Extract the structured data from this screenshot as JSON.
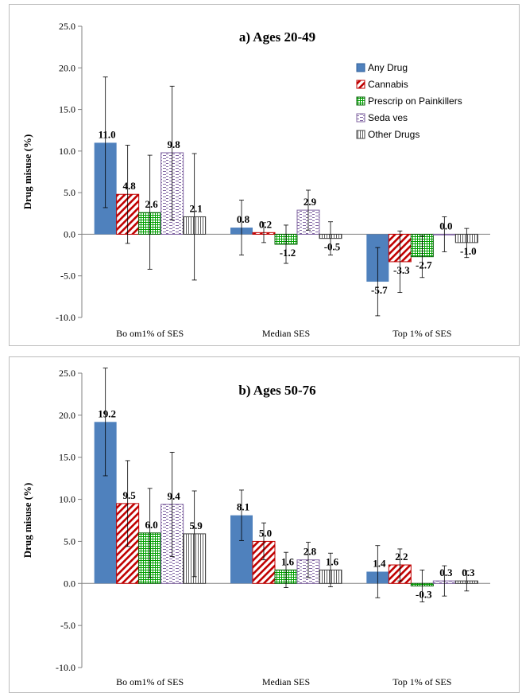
{
  "chart_data": [
    {
      "type": "bar",
      "title": "a) Ages 20-49",
      "ylabel": "Drug misuse (%)",
      "xlabel": "",
      "ylim": [
        -10,
        25
      ],
      "yticks": [
        "-10.0",
        "-5.0",
        "0.0",
        "5.0",
        "10.0",
        "15.0",
        "20.0",
        "25.0"
      ],
      "categories": [
        "Bo    om1% of SES",
        "Median SES",
        "Top 1% of SES"
      ],
      "legend_position": "top-right",
      "series": [
        {
          "name": "Any Drug",
          "values": [
            11.0,
            0.8,
            -5.7
          ],
          "labels": [
            "11.0",
            "0.8",
            "-5.7"
          ],
          "err_low": [
            3.2,
            -2.5,
            -9.8
          ],
          "err_high": [
            18.9,
            4.1,
            -1.6
          ]
        },
        {
          "name": "Cannabis",
          "values": [
            4.8,
            0.2,
            -3.3
          ],
          "labels": [
            "4.8",
            "0.2",
            "-3.3"
          ],
          "err_low": [
            -1.1,
            -1.0,
            -7.0
          ],
          "err_high": [
            10.7,
            1.4,
            0.4
          ]
        },
        {
          "name": "Prescrip  on Painkillers",
          "values": [
            2.6,
            -1.2,
            -2.7
          ],
          "labels": [
            "2.6",
            "-1.2",
            "-2.7"
          ],
          "err_low": [
            -4.2,
            -3.5,
            -5.2
          ],
          "err_high": [
            9.5,
            1.1,
            -0.2
          ]
        },
        {
          "name": "Seda  ves",
          "values": [
            9.8,
            2.9,
            0.0
          ],
          "labels": [
            "9.8",
            "2.9",
            "0.0"
          ],
          "err_low": [
            1.7,
            0.5,
            -2.1
          ],
          "err_high": [
            17.8,
            5.3,
            2.1
          ]
        },
        {
          "name": "Other Drugs",
          "values": [
            2.1,
            -0.5,
            -1.0
          ],
          "labels": [
            "2.1",
            "-0.5",
            "-1.0"
          ],
          "err_low": [
            -5.5,
            -2.5,
            -2.8
          ],
          "err_high": [
            9.7,
            1.5,
            0.7
          ]
        }
      ]
    },
    {
      "type": "bar",
      "title": "b) Ages 50-76",
      "ylabel": "Drug misuse (%)",
      "xlabel": "",
      "ylim": [
        -10,
        25
      ],
      "yticks": [
        "-10.0",
        "-5.0",
        "0.0",
        "5.0",
        "10.0",
        "15.0",
        "20.0",
        "25.0"
      ],
      "categories": [
        "Bo    om1% of SES",
        "Median SES",
        "Top 1% of SES"
      ],
      "series": [
        {
          "name": "Any Drug",
          "values": [
            19.2,
            8.1,
            1.4
          ],
          "labels": [
            "19.2",
            "8.1",
            "1.4"
          ],
          "err_low": [
            12.8,
            5.1,
            -1.7
          ],
          "err_high": [
            25.6,
            11.1,
            4.5
          ]
        },
        {
          "name": "Cannabis",
          "values": [
            9.5,
            5.0,
            2.2
          ],
          "labels": [
            "9.5",
            "5.0",
            "2.2"
          ],
          "err_low": [
            4.4,
            2.8,
            0.3
          ],
          "err_high": [
            14.6,
            7.2,
            4.1
          ]
        },
        {
          "name": "Prescrip  on Painkillers",
          "values": [
            6.0,
            1.6,
            -0.3
          ],
          "labels": [
            "6.0",
            "1.6",
            "-0.3"
          ],
          "err_low": [
            0.7,
            -0.5,
            -2.2
          ],
          "err_high": [
            11.3,
            3.7,
            1.6
          ]
        },
        {
          "name": "Seda  ves",
          "values": [
            9.4,
            2.8,
            0.3
          ],
          "labels": [
            "9.4",
            "2.8",
            "0.3"
          ],
          "err_low": [
            3.2,
            0.7,
            -1.5
          ],
          "err_high": [
            15.6,
            4.9,
            2.1
          ]
        },
        {
          "name": "Other Drugs",
          "values": [
            5.9,
            1.6,
            0.3
          ],
          "labels": [
            "5.9",
            "1.6",
            "0.3"
          ],
          "err_low": [
            0.8,
            -0.4,
            -0.9
          ],
          "err_high": [
            11.0,
            3.6,
            1.5
          ]
        }
      ]
    }
  ],
  "series_colors": {
    "Any Drug": "#4f81bd",
    "Cannabis": "#c00000",
    "Prescrip  on Painkillers": "#00a000",
    "Seda  ves": "#8064a2",
    "Other Drugs": "#808080"
  }
}
